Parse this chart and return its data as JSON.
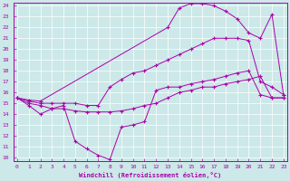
{
  "xlabel": "Windchill (Refroidissement éolien,°C)",
  "bg_color": "#cce8e8",
  "line_color": "#aa00aa",
  "xmin": 0,
  "xmax": 23,
  "ymin": 10,
  "ymax": 24,
  "xticks": [
    0,
    1,
    2,
    3,
    4,
    5,
    6,
    7,
    8,
    9,
    10,
    11,
    12,
    13,
    14,
    15,
    16,
    17,
    18,
    19,
    20,
    21,
    22,
    23
  ],
  "yticks": [
    10,
    11,
    12,
    13,
    14,
    15,
    16,
    17,
    18,
    19,
    20,
    21,
    22,
    23,
    24
  ],
  "lines": [
    {
      "x": [
        0,
        1,
        2,
        3,
        4,
        5,
        6,
        7,
        8,
        9,
        10,
        11,
        12,
        13,
        14,
        15,
        16,
        17,
        18,
        19,
        20,
        21,
        22,
        23
      ],
      "y": [
        15.5,
        14.8,
        14.0,
        14.5,
        14.8,
        11.5,
        10.8,
        10.2,
        9.8,
        12.8,
        13.0,
        13.3,
        16.2,
        16.5,
        16.5,
        16.8,
        17.0,
        17.2,
        17.5,
        17.8,
        18.0,
        15.8,
        15.5,
        15.5
      ]
    },
    {
      "x": [
        0,
        1,
        2,
        13,
        14,
        15,
        16,
        17,
        18,
        19,
        20,
        21,
        22,
        23
      ],
      "y": [
        15.5,
        15.3,
        15.2,
        22.0,
        23.8,
        24.2,
        24.2,
        24.0,
        23.5,
        22.8,
        21.5,
        21.0,
        23.2,
        15.8
      ]
    },
    {
      "x": [
        0,
        1,
        2,
        3,
        4,
        5,
        6,
        7,
        8,
        9,
        10,
        11,
        12,
        13,
        14,
        15,
        16,
        17,
        18,
        19,
        20,
        21,
        22,
        23
      ],
      "y": [
        15.5,
        15.2,
        15.0,
        15.0,
        15.0,
        15.0,
        14.8,
        14.8,
        16.5,
        17.2,
        17.8,
        18.0,
        18.5,
        19.0,
        19.5,
        20.0,
        20.5,
        21.0,
        21.0,
        21.0,
        20.8,
        17.0,
        16.5,
        15.8
      ]
    },
    {
      "x": [
        0,
        1,
        2,
        3,
        4,
        5,
        6,
        7,
        8,
        9,
        10,
        11,
        12,
        13,
        14,
        15,
        16,
        17,
        18,
        19,
        20,
        21,
        22,
        23
      ],
      "y": [
        15.5,
        15.0,
        14.8,
        14.5,
        14.5,
        14.3,
        14.2,
        14.2,
        14.2,
        14.3,
        14.5,
        14.8,
        15.0,
        15.5,
        16.0,
        16.2,
        16.5,
        16.5,
        16.8,
        17.0,
        17.2,
        17.5,
        15.5,
        15.5
      ]
    }
  ]
}
